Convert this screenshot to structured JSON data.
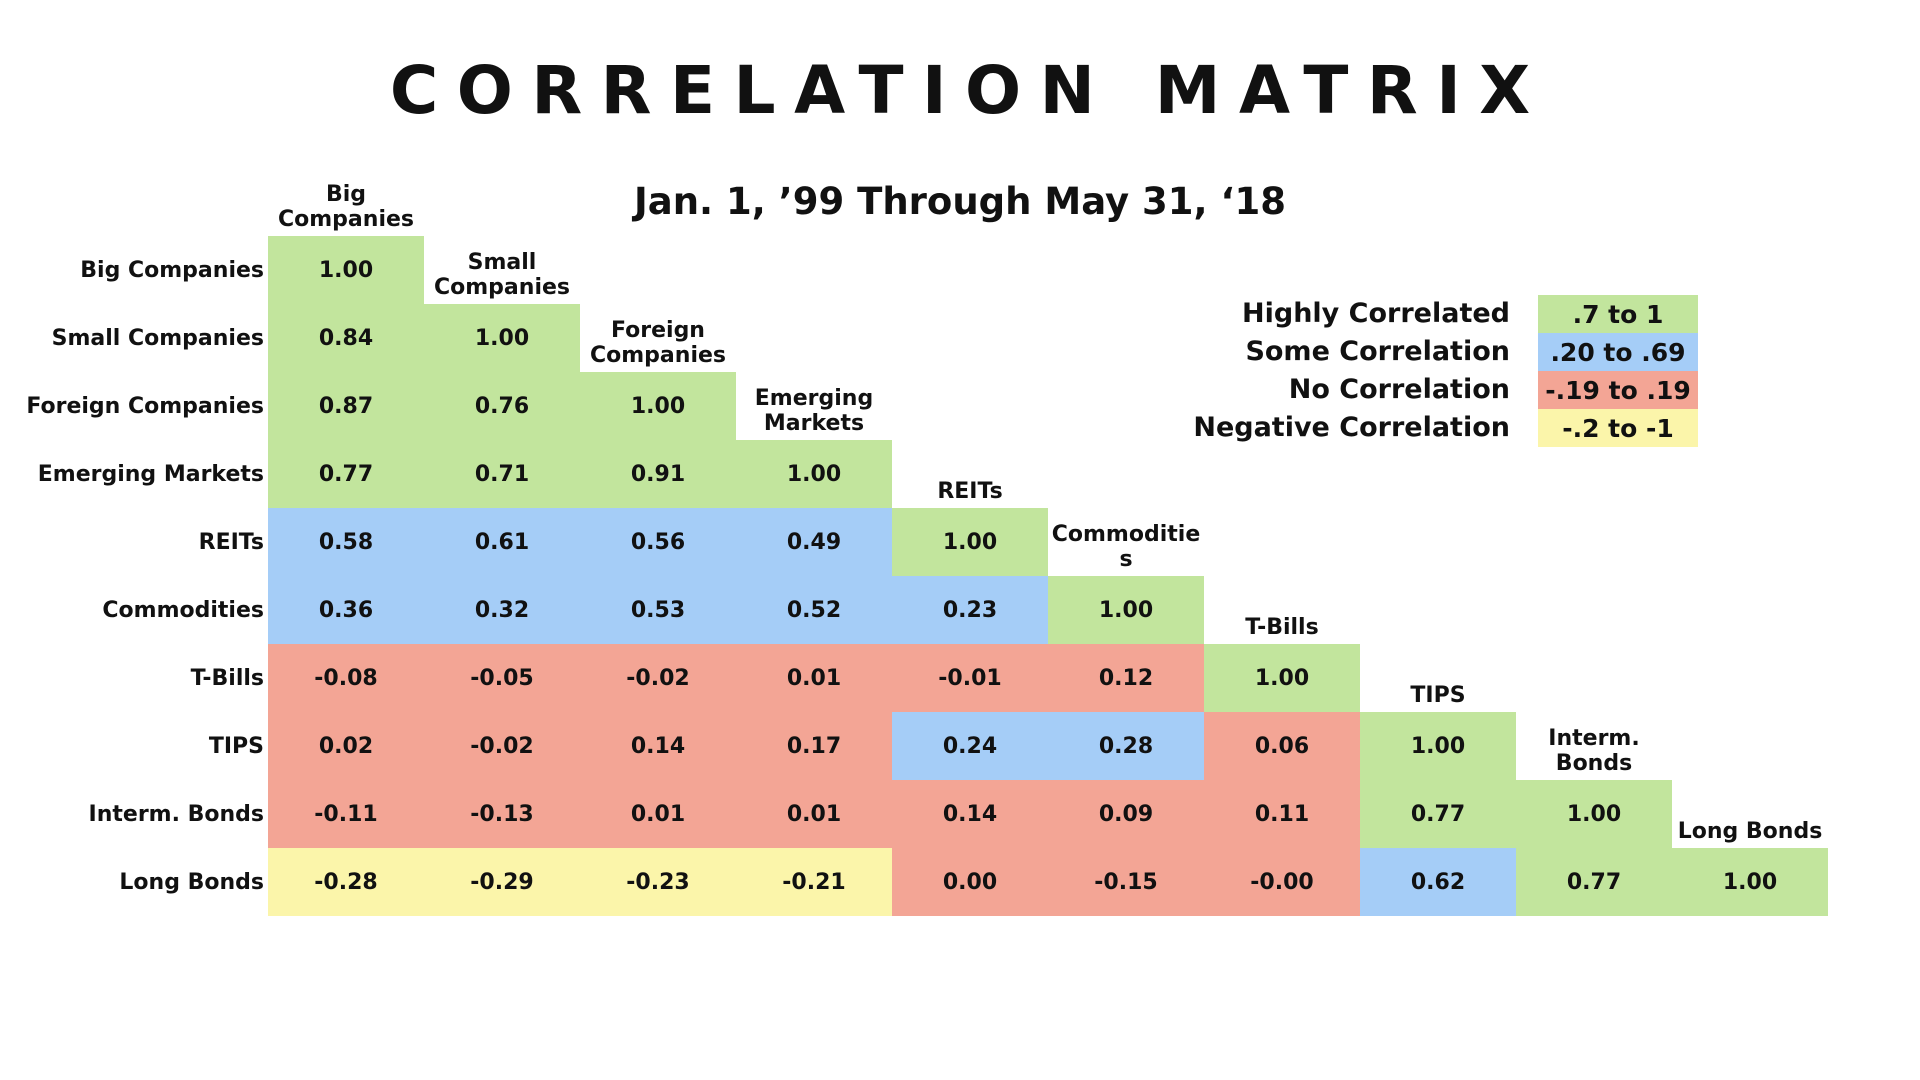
{
  "chart_data": {
    "type": "heatmap",
    "title": "CORRELATION MATRIX",
    "subtitle": "Jan. 1, ’99 Through May 31, ‘18",
    "assets": [
      "Big Companies",
      "Small Companies",
      "Foreign Companies",
      "Emerging Markets",
      "REITs",
      "Commodities",
      "T-Bills",
      "TIPS",
      "Interm. Bonds",
      "Long Bonds"
    ],
    "row_labels": [
      "Big Companies",
      "Small Companies",
      "Foreign Companies",
      "Emerging Markets",
      "REITs",
      "Commodities",
      "T-Bills",
      "TIPS",
      "Interm. Bonds",
      "Long Bonds"
    ],
    "col_labels": [
      "Big Companies",
      "Small Companies",
      "Foreign Companies",
      "Emerging Markets",
      "REITs",
      "Commoditie s",
      "T-Bills",
      "TIPS",
      "Interm. Bonds",
      "Long Bonds"
    ],
    "matrix": [
      [
        "1.00"
      ],
      [
        "0.84",
        "1.00"
      ],
      [
        "0.87",
        "0.76",
        "1.00"
      ],
      [
        "0.77",
        "0.71",
        "0.91",
        "1.00"
      ],
      [
        "0.58",
        "0.61",
        "0.56",
        "0.49",
        "1.00"
      ],
      [
        "0.36",
        "0.32",
        "0.53",
        "0.52",
        "0.23",
        "1.00"
      ],
      [
        "-0.08",
        "-0.05",
        "-0.02",
        "0.01",
        "-0.01",
        "0.12",
        "1.00"
      ],
      [
        "0.02",
        "-0.02",
        "0.14",
        "0.17",
        "0.24",
        "0.28",
        "0.06",
        "1.00"
      ],
      [
        "-0.11",
        "-0.13",
        "0.01",
        "0.01",
        "0.14",
        "0.09",
        "0.11",
        "0.77",
        "1.00"
      ],
      [
        "-0.28",
        "-0.29",
        "-0.23",
        "-0.21",
        "0.00",
        "-0.15",
        "-0.00",
        "0.62",
        "0.77",
        "1.00"
      ]
    ],
    "legend": [
      {
        "label": "Highly Correlated",
        "range": ".7 to 1",
        "color": "#c2e59d"
      },
      {
        "label": "Some Correlation",
        "range": ".20 to .69",
        "color": "#a5cdf7"
      },
      {
        "label": "No Correlation",
        "range": "-.19 to .19",
        "color": "#f3a595"
      },
      {
        "label": "Negative Correlation",
        "range": "-.2 to -1",
        "color": "#fbf5aa"
      }
    ],
    "legend_placement": "top-right"
  }
}
